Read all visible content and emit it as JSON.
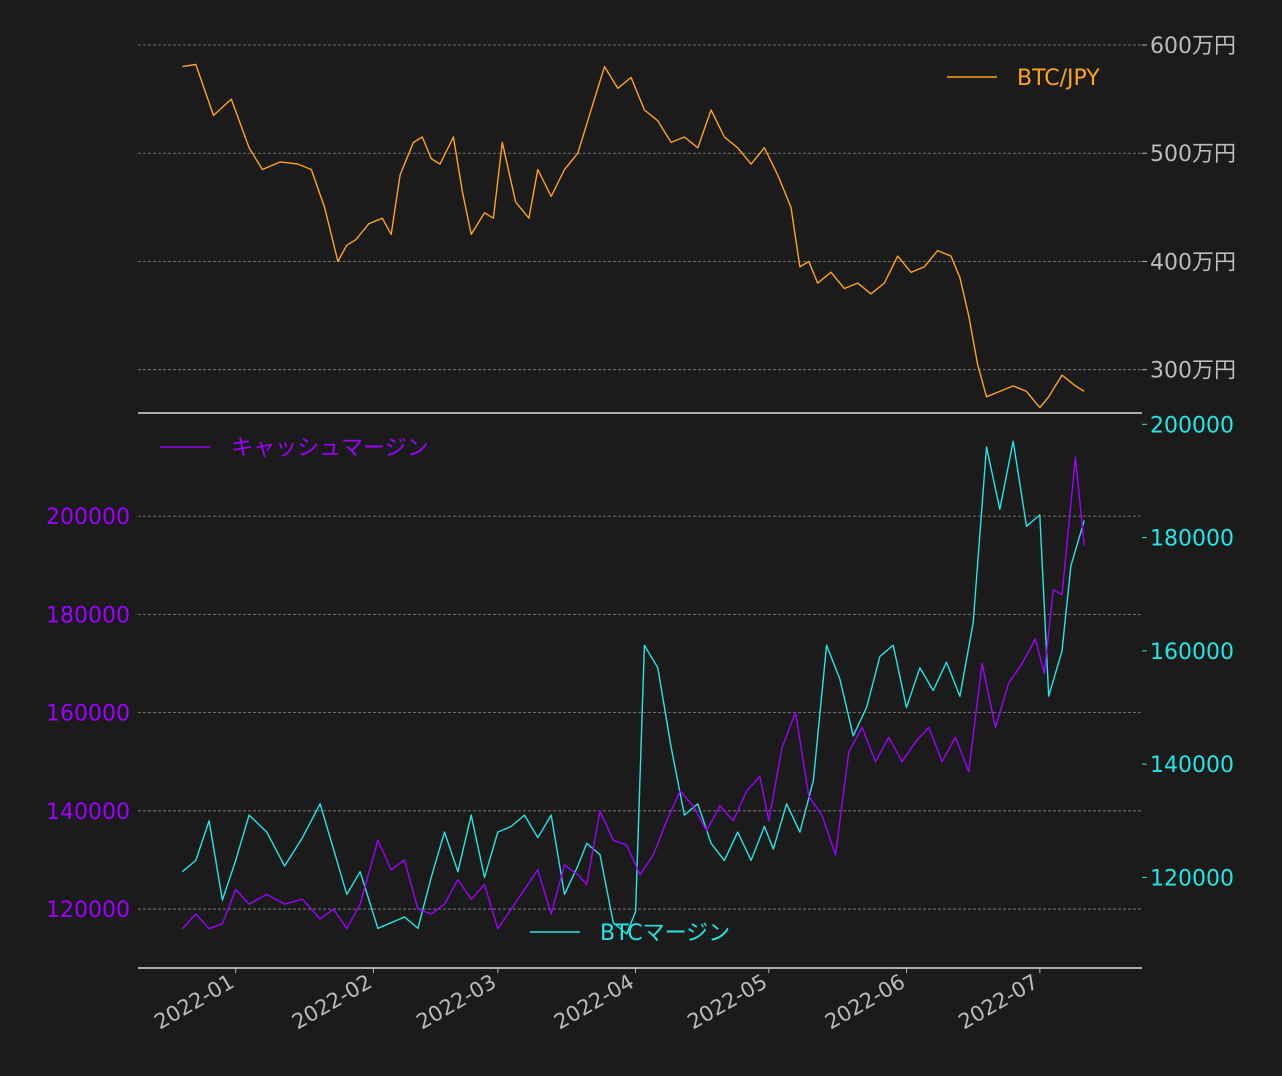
{
  "colors": {
    "background": "#1b1b1b",
    "btc_jpy": "#ffa31a",
    "cash_margin": "#a000ff",
    "btc_margin": "#22e6e6",
    "grid": "#888888",
    "axis_line": "#dddddd",
    "tick_text": "#bbbbbb"
  },
  "chart_data": [
    {
      "type": "line",
      "panel": "top",
      "legend": {
        "label": "BTC/JPY",
        "placement": "top-right"
      },
      "y_axis_side": "right",
      "ylim": [
        2600000,
        6000000
      ],
      "yticks": [
        3000000,
        4000000,
        5000000,
        6000000
      ],
      "ytick_labels": [
        "300万円",
        "400万円",
        "500万円",
        "600万円"
      ],
      "grid": true,
      "series": [
        {
          "name": "BTC/JPY",
          "x": [
            "2021-12-20",
            "2021-12-23",
            "2021-12-27",
            "2021-12-31",
            "2022-01-04",
            "2022-01-07",
            "2022-01-11",
            "2022-01-15",
            "2022-01-18",
            "2022-01-21",
            "2022-01-24",
            "2022-01-26",
            "2022-01-28",
            "2022-01-31",
            "2022-02-03",
            "2022-02-05",
            "2022-02-07",
            "2022-02-10",
            "2022-02-12",
            "2022-02-14",
            "2022-02-16",
            "2022-02-19",
            "2022-02-21",
            "2022-02-23",
            "2022-02-26",
            "2022-02-28",
            "2022-03-02",
            "2022-03-05",
            "2022-03-08",
            "2022-03-10",
            "2022-03-13",
            "2022-03-16",
            "2022-03-19",
            "2022-03-22",
            "2022-03-25",
            "2022-03-28",
            "2022-03-31",
            "2022-04-03",
            "2022-04-06",
            "2022-04-09",
            "2022-04-12",
            "2022-04-15",
            "2022-04-18",
            "2022-04-21",
            "2022-04-24",
            "2022-04-27",
            "2022-04-30",
            "2022-05-03",
            "2022-05-06",
            "2022-05-08",
            "2022-05-10",
            "2022-05-12",
            "2022-05-15",
            "2022-05-18",
            "2022-05-21",
            "2022-05-24",
            "2022-05-27",
            "2022-05-30",
            "2022-06-02",
            "2022-06-05",
            "2022-06-08",
            "2022-06-11",
            "2022-06-13",
            "2022-06-15",
            "2022-06-17",
            "2022-06-19",
            "2022-06-22",
            "2022-06-25",
            "2022-06-28",
            "2022-07-01",
            "2022-07-03",
            "2022-07-06",
            "2022-07-09",
            "2022-07-11"
          ],
          "values": [
            5800000,
            5820000,
            5350000,
            5500000,
            5050000,
            4850000,
            4920000,
            4900000,
            4850000,
            4500000,
            4000000,
            4150000,
            4200000,
            4350000,
            4400000,
            4250000,
            4800000,
            5100000,
            5150000,
            4950000,
            4900000,
            5150000,
            4650000,
            4250000,
            4450000,
            4400000,
            5100000,
            4550000,
            4400000,
            4850000,
            4600000,
            4850000,
            5000000,
            5400000,
            5800000,
            5600000,
            5700000,
            5400000,
            5300000,
            5100000,
            5150000,
            5050000,
            5400000,
            5150000,
            5050000,
            4900000,
            5050000,
            4800000,
            4500000,
            3950000,
            4000000,
            3800000,
            3900000,
            3750000,
            3800000,
            3700000,
            3800000,
            4050000,
            3900000,
            3950000,
            4100000,
            4050000,
            3850000,
            3500000,
            3050000,
            2750000,
            2800000,
            2850000,
            2800000,
            2650000,
            2750000,
            2950000,
            2850000,
            2800000
          ]
        }
      ]
    },
    {
      "type": "line",
      "panel": "bottom",
      "grid": true,
      "xlim": [
        "2021-12-10",
        "2022-07-24"
      ],
      "xticks": [
        "2022-01",
        "2022-02",
        "2022-03",
        "2022-04",
        "2022-05",
        "2022-06",
        "2022-07"
      ],
      "y_left": {
        "ylim": [
          108000,
          221000
        ],
        "ticks": [
          120000,
          140000,
          160000,
          180000,
          200000
        ],
        "color": "#a000ff"
      },
      "y_right": {
        "ylim": [
          104000,
          202000
        ],
        "ticks": [
          120000,
          140000,
          160000,
          180000,
          200000
        ],
        "color": "#22e6e6"
      },
      "series": [
        {
          "name": "キャッシュマージン",
          "axis": "left",
          "legend_placement": "top-left",
          "x": [
            "2021-12-20",
            "2021-12-23",
            "2021-12-26",
            "2021-12-29",
            "2022-01-01",
            "2022-01-04",
            "2022-01-08",
            "2022-01-12",
            "2022-01-16",
            "2022-01-20",
            "2022-01-23",
            "2022-01-26",
            "2022-01-29",
            "2022-02-02",
            "2022-02-05",
            "2022-02-08",
            "2022-02-11",
            "2022-02-14",
            "2022-02-17",
            "2022-02-20",
            "2022-02-23",
            "2022-02-26",
            "2022-03-01",
            "2022-03-04",
            "2022-03-07",
            "2022-03-10",
            "2022-03-13",
            "2022-03-16",
            "2022-03-19",
            "2022-03-21",
            "2022-03-24",
            "2022-03-27",
            "2022-03-30",
            "2022-04-02",
            "2022-04-05",
            "2022-04-08",
            "2022-04-11",
            "2022-04-14",
            "2022-04-17",
            "2022-04-20",
            "2022-04-23",
            "2022-04-26",
            "2022-04-29",
            "2022-05-01",
            "2022-05-04",
            "2022-05-07",
            "2022-05-10",
            "2022-05-13",
            "2022-05-16",
            "2022-05-19",
            "2022-05-22",
            "2022-05-25",
            "2022-05-28",
            "2022-05-31",
            "2022-06-03",
            "2022-06-06",
            "2022-06-09",
            "2022-06-12",
            "2022-06-15",
            "2022-06-18",
            "2022-06-21",
            "2022-06-24",
            "2022-06-27",
            "2022-06-30",
            "2022-07-02",
            "2022-07-04",
            "2022-07-06",
            "2022-07-09",
            "2022-07-11"
          ],
          "values": [
            116000,
            119000,
            116000,
            117000,
            124000,
            121000,
            123000,
            121000,
            122000,
            118000,
            120000,
            116000,
            121000,
            134000,
            128000,
            130000,
            120000,
            119000,
            121000,
            126000,
            122000,
            125000,
            116000,
            120000,
            124000,
            128000,
            119000,
            129000,
            127000,
            125000,
            140000,
            134000,
            133000,
            127000,
            131000,
            138000,
            144000,
            141000,
            136000,
            141000,
            138000,
            144000,
            147000,
            138000,
            153000,
            160000,
            143000,
            139000,
            131000,
            152000,
            157000,
            150000,
            155000,
            150000,
            154000,
            157000,
            150000,
            155000,
            148000,
            170000,
            157000,
            166000,
            170000,
            175000,
            168000,
            185000,
            184000,
            212000,
            194000
          ]
        },
        {
          "name": "BTCマージン",
          "axis": "right",
          "legend_placement": "bottom-center",
          "x": [
            "2021-12-20",
            "2021-12-23",
            "2021-12-26",
            "2021-12-29",
            "2022-01-01",
            "2022-01-04",
            "2022-01-08",
            "2022-01-12",
            "2022-01-16",
            "2022-01-20",
            "2022-01-23",
            "2022-01-26",
            "2022-01-29",
            "2022-02-02",
            "2022-02-05",
            "2022-02-08",
            "2022-02-11",
            "2022-02-14",
            "2022-02-17",
            "2022-02-20",
            "2022-02-23",
            "2022-02-26",
            "2022-03-01",
            "2022-03-04",
            "2022-03-07",
            "2022-03-10",
            "2022-03-13",
            "2022-03-16",
            "2022-03-19",
            "2022-03-21",
            "2022-03-24",
            "2022-03-27",
            "2022-03-30",
            "2022-04-01",
            "2022-04-03",
            "2022-04-06",
            "2022-04-09",
            "2022-04-12",
            "2022-04-15",
            "2022-04-18",
            "2022-04-21",
            "2022-04-24",
            "2022-04-27",
            "2022-04-30",
            "2022-05-02",
            "2022-05-05",
            "2022-05-08",
            "2022-05-11",
            "2022-05-14",
            "2022-05-17",
            "2022-05-20",
            "2022-05-23",
            "2022-05-26",
            "2022-05-29",
            "2022-06-01",
            "2022-06-04",
            "2022-06-07",
            "2022-06-10",
            "2022-06-13",
            "2022-06-16",
            "2022-06-19",
            "2022-06-22",
            "2022-06-25",
            "2022-06-28",
            "2022-07-01",
            "2022-07-03",
            "2022-07-06",
            "2022-07-08",
            "2022-07-11"
          ],
          "values": [
            121000,
            123000,
            130000,
            116000,
            123000,
            131000,
            128000,
            122000,
            127000,
            133000,
            125000,
            117000,
            121000,
            111000,
            112000,
            113000,
            111000,
            120000,
            128000,
            121000,
            131000,
            120000,
            128000,
            129000,
            131000,
            127000,
            131000,
            117000,
            122000,
            126000,
            124000,
            112000,
            110000,
            114000,
            161000,
            157000,
            143000,
            131000,
            133000,
            126000,
            123000,
            128000,
            123000,
            129000,
            125000,
            133000,
            128000,
            137000,
            161000,
            155000,
            145000,
            150000,
            159000,
            161000,
            150000,
            157000,
            153000,
            158000,
            152000,
            165000,
            196000,
            185000,
            197000,
            182000,
            184000,
            152000,
            160000,
            175000,
            183000
          ]
        }
      ]
    }
  ]
}
